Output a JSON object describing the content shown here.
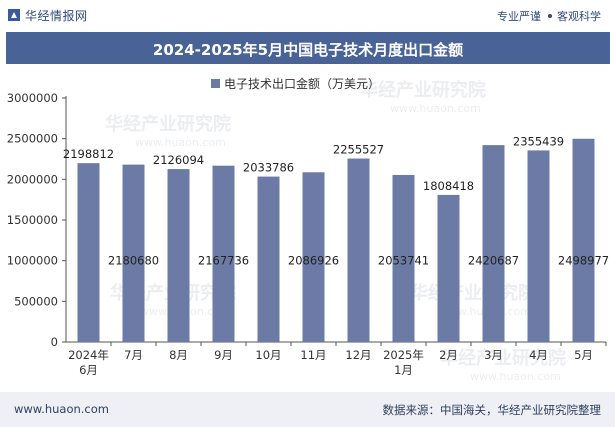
{
  "header": {
    "brand": "华经情报网",
    "tag_left": "专业严谨",
    "tag_right": "客观科学"
  },
  "title": "2024-2025年5月中国电子技术月度出口金额",
  "footer": {
    "website": "www.huaon.com",
    "source": "数据来源：中国海关，华经产业研究院整理"
  },
  "watermark": "华经产业研究院",
  "watermark_url": "www.huaon.com",
  "colors": {
    "bar": "#6b7ba5",
    "title_bg": "#4a6396",
    "axis": "#555555"
  },
  "chart_data": {
    "type": "bar",
    "categories": [
      "2024年\n6月",
      "7月",
      "8月",
      "9月",
      "10月",
      "11月",
      "12月",
      "2025年\n1月",
      "2月",
      "3月",
      "4月",
      "5月"
    ],
    "series": [
      {
        "name": "电子技术出口金额（万美元）",
        "values": [
          2198812,
          2180680,
          2126094,
          2167736,
          2033786,
          2086926,
          2255527,
          2053741,
          1808418,
          2420687,
          2355439,
          2498977
        ]
      }
    ],
    "label_position": [
      "top",
      "inside",
      "top",
      "inside",
      "top",
      "inside",
      "top",
      "inside",
      "top",
      "inside",
      "top",
      "inside"
    ],
    "ylim": [
      0,
      3000000
    ],
    "yticks": [
      0,
      500000,
      1000000,
      1500000,
      2000000,
      2500000,
      3000000
    ],
    "legend_position": "top-center",
    "grid": false
  }
}
